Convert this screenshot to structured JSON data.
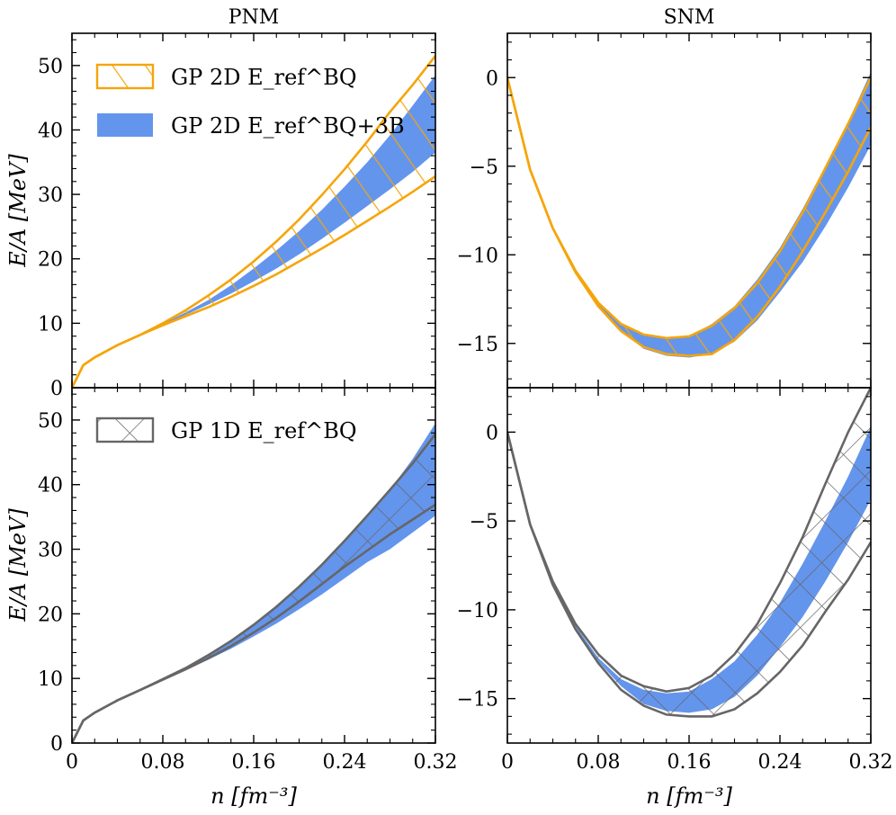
{
  "chart_data": {
    "type": "area",
    "xlabel": "n [fm⁻³]",
    "ylabel": "E/A [MeV]",
    "column_titles": [
      "PNM",
      "SNM"
    ],
    "x_ticks": [
      "0",
      "0.08",
      "0.16",
      "0.24",
      "0.32"
    ],
    "xlim": [
      0,
      0.32
    ],
    "legends": {
      "top": [
        {
          "name": "GP 2D E_ref^BQ",
          "style": "hatched-outline",
          "color": "#F5A50A"
        },
        {
          "name": "GP 2D E_ref^BQ+3B",
          "style": "filled",
          "color": "#6495ED"
        }
      ],
      "bottom": [
        {
          "name": "GP 1D E_ref^BQ",
          "style": "hatched-outline",
          "color": "#666666"
        }
      ]
    },
    "panels": [
      {
        "id": "pnm-top",
        "title": "PNM",
        "ylim": [
          0,
          55
        ],
        "y_ticks": [
          "0",
          "10",
          "20",
          "30",
          "40",
          "50"
        ],
        "x": [
          0,
          0.01,
          0.02,
          0.04,
          0.06,
          0.08,
          0.1,
          0.12,
          0.14,
          0.16,
          0.18,
          0.2,
          0.22,
          0.24,
          0.26,
          0.28,
          0.3,
          0.32
        ],
        "bands": [
          {
            "name": "GP 2D E_ref^BQ+3B",
            "style": "fill",
            "color": "#6495ED",
            "lower": [
              0,
              3.5,
              4.7,
              6.6,
              8.2,
              9.8,
              11.3,
              12.9,
              14.6,
              16.5,
              18.5,
              20.7,
              23.1,
              25.6,
              28.2,
              30.8,
              33.5,
              36.5
            ],
            "upper": [
              0,
              3.5,
              4.7,
              6.6,
              8.2,
              9.9,
              11.7,
              13.6,
              15.9,
              18.5,
              21.3,
              24.3,
              27.6,
              31.2,
              35.0,
              39.2,
              43.8,
              48.5
            ]
          },
          {
            "name": "GP 2D E_ref^BQ",
            "style": "hatch",
            "color": "#F5A50A",
            "lower": [
              0,
              3.5,
              4.7,
              6.6,
              8.2,
              9.7,
              11.1,
              12.5,
              14.1,
              15.8,
              17.6,
              19.6,
              21.6,
              23.7,
              25.9,
              28.1,
              30.4,
              32.8
            ],
            "upper": [
              0,
              3.5,
              4.7,
              6.6,
              8.2,
              10.0,
              12.0,
              14.3,
              16.8,
              19.6,
              22.7,
              26.1,
              29.9,
              33.9,
              38.2,
              42.8,
              47.0,
              51.5
            ]
          }
        ]
      },
      {
        "id": "snm-top",
        "title": "SNM",
        "ylim": [
          -17.5,
          2.5
        ],
        "y_ticks": [
          "−15",
          "−10",
          "−5",
          "0"
        ],
        "x": [
          0,
          0.02,
          0.04,
          0.06,
          0.08,
          0.1,
          0.12,
          0.14,
          0.16,
          0.18,
          0.2,
          0.22,
          0.24,
          0.26,
          0.28,
          0.3,
          0.32
        ],
        "bands": [
          {
            "name": "GP 2D E_ref^BQ+3B",
            "style": "fill",
            "color": "#6495ED",
            "lower": [
              0,
              -5.2,
              -8.5,
              -11.0,
              -12.9,
              -14.3,
              -15.3,
              -15.7,
              -15.8,
              -15.6,
              -14.9,
              -13.7,
              -12.1,
              -10.4,
              -8.4,
              -6.2,
              -3.8
            ],
            "upper": [
              0,
              -5.2,
              -8.5,
              -10.9,
              -12.7,
              -13.9,
              -14.5,
              -14.7,
              -14.6,
              -13.9,
              -12.9,
              -11.4,
              -9.6,
              -7.4,
              -5.0,
              -2.5,
              0.3
            ]
          },
          {
            "name": "GP 2D E_ref^BQ",
            "style": "hatch",
            "color": "#F5A50A",
            "lower": [
              0,
              -5.2,
              -8.5,
              -11.0,
              -12.9,
              -14.3,
              -15.2,
              -15.6,
              -15.7,
              -15.6,
              -14.8,
              -13.5,
              -11.8,
              -9.8,
              -7.6,
              -5.3,
              -2.8
            ],
            "upper": [
              0,
              -5.2,
              -8.5,
              -10.9,
              -12.7,
              -13.9,
              -14.5,
              -14.7,
              -14.6,
              -14.0,
              -13.0,
              -11.6,
              -9.8,
              -7.6,
              -5.1,
              -2.6,
              0.0
            ]
          }
        ]
      },
      {
        "id": "pnm-bottom",
        "ylim": [
          0,
          55
        ],
        "y_ticks": [
          "0",
          "10",
          "20",
          "30",
          "40",
          "50"
        ],
        "x": [
          0,
          0.01,
          0.02,
          0.04,
          0.06,
          0.08,
          0.1,
          0.12,
          0.14,
          0.16,
          0.18,
          0.2,
          0.22,
          0.24,
          0.26,
          0.28,
          0.3,
          0.32
        ],
        "bands": [
          {
            "name": "GP 2D E_ref^BQ+3B",
            "style": "fill",
            "color": "#6495ED",
            "lower": [
              0,
              3.5,
              4.7,
              6.6,
              8.2,
              9.8,
              11.3,
              12.9,
              14.6,
              16.5,
              18.5,
              20.7,
              23.0,
              25.5,
              28.0,
              30.0,
              32.6,
              35.2
            ],
            "upper": [
              0,
              3.5,
              4.7,
              6.6,
              8.2,
              9.9,
              11.7,
              13.6,
              15.9,
              18.5,
              21.3,
              24.3,
              27.6,
              31.2,
              35.0,
              39.2,
              44.0,
              49.5
            ]
          },
          {
            "name": "GP 1D E_ref^BQ",
            "style": "hatch",
            "color": "#666666",
            "lower": [
              0,
              3.5,
              4.7,
              6.6,
              8.2,
              9.8,
              11.4,
              13.1,
              15.0,
              17.1,
              19.4,
              21.9,
              24.6,
              27.3,
              29.8,
              32.3,
              34.6,
              36.9
            ],
            "upper": [
              0,
              3.5,
              4.7,
              6.6,
              8.2,
              9.9,
              11.6,
              13.6,
              15.8,
              18.3,
              21.1,
              24.2,
              27.6,
              31.3,
              35.2,
              39.2,
              43.3,
              47.8
            ]
          }
        ]
      },
      {
        "id": "snm-bottom",
        "ylim": [
          -17.5,
          2.5
        ],
        "y_ticks": [
          "−15",
          "−10",
          "−5",
          "0"
        ],
        "x": [
          0,
          0.02,
          0.04,
          0.06,
          0.08,
          0.1,
          0.12,
          0.14,
          0.16,
          0.18,
          0.2,
          0.22,
          0.24,
          0.26,
          0.28,
          0.3,
          0.32
        ],
        "bands": [
          {
            "name": "GP 2D E_ref^BQ+3B",
            "style": "fill",
            "color": "#6495ED",
            "lower": [
              0,
              -5.2,
              -8.5,
              -11.0,
              -12.9,
              -14.3,
              -15.3,
              -15.7,
              -15.8,
              -15.6,
              -14.9,
              -13.7,
              -12.1,
              -10.4,
              -8.4,
              -6.2,
              -3.8
            ],
            "upper": [
              0,
              -5.2,
              -8.5,
              -10.9,
              -12.7,
              -13.9,
              -14.5,
              -14.7,
              -14.6,
              -13.9,
              -12.9,
              -11.4,
              -9.6,
              -7.4,
              -5.0,
              -2.5,
              0.3
            ]
          },
          {
            "name": "GP 1D E_ref^BQ",
            "style": "hatch",
            "color": "#666666",
            "lower": [
              0,
              -5.2,
              -8.6,
              -11.1,
              -13.0,
              -14.5,
              -15.4,
              -15.9,
              -16.0,
              -16.0,
              -15.6,
              -14.7,
              -13.5,
              -12.0,
              -10.1,
              -8.3,
              -6.2
            ],
            "upper": [
              0,
              -5.2,
              -8.4,
              -10.8,
              -12.5,
              -13.7,
              -14.3,
              -14.6,
              -14.4,
              -13.7,
              -12.5,
              -10.8,
              -8.5,
              -5.9,
              -2.9,
              0.0,
              2.5
            ]
          }
        ]
      }
    ]
  }
}
